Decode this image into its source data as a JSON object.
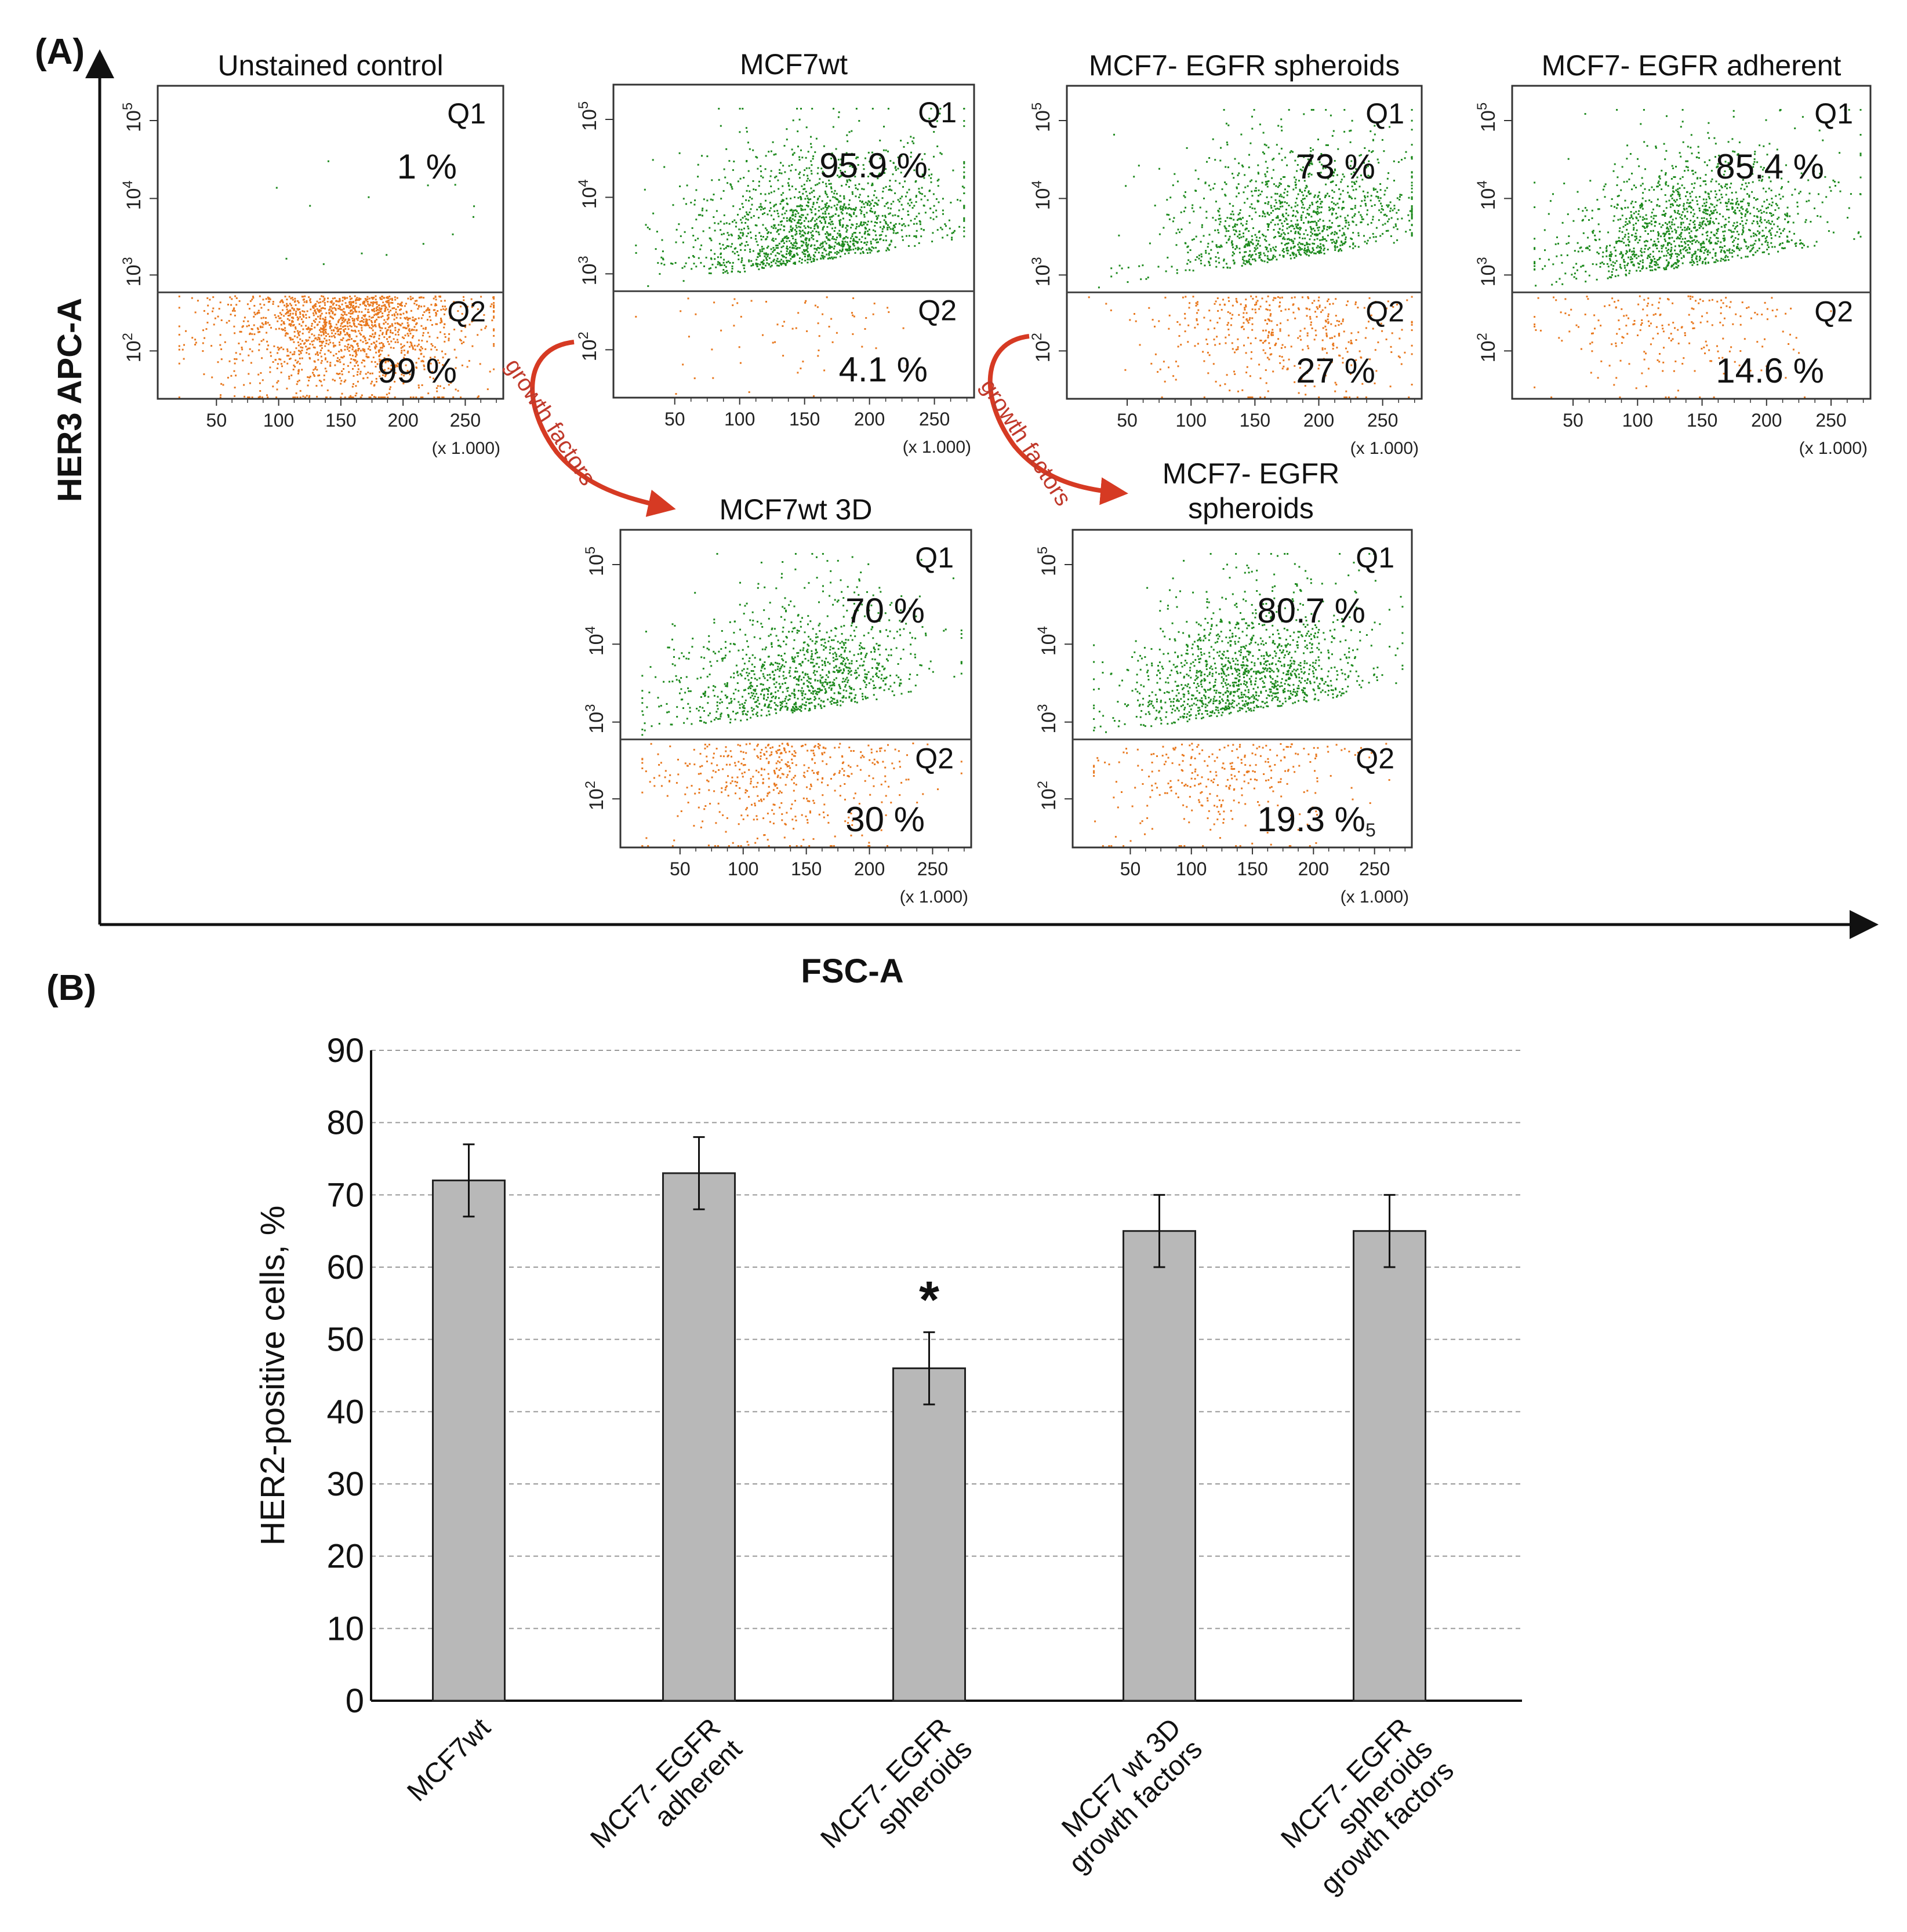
{
  "panel_a_label": "(A)",
  "panel_b_label": "(B)",
  "panel_a": {
    "y_axis_title": "HER3 APC-A",
    "x_axis_title": "FSC-A",
    "arrow_label": "growth factors",
    "stray_mark": "5",
    "plots": [
      {
        "title": "Unstained control",
        "q1_label": "Q1",
        "q1": "1 %",
        "q2_label": "Q2",
        "q2": "99 %",
        "q1_frac": 0.01,
        "x_mean": 0.55
      },
      {
        "title": "MCF7wt",
        "q1_label": "Q1",
        "q1": "95.9 %",
        "q2_label": "Q2",
        "q2": "4.1 %",
        "q1_frac": 0.959,
        "x_mean": 0.5
      },
      {
        "title": "MCF7- EGFR spheroids",
        "q1_label": "Q1",
        "q1": "73 %",
        "q2_label": "Q2",
        "q2": "27 %",
        "q1_frac": 0.73,
        "x_mean": 0.6
      },
      {
        "title": "MCF7- EGFR adherent",
        "q1_label": "Q1",
        "q1": "85.4 %",
        "q2_label": "Q2",
        "q2": "14.6 %",
        "q1_frac": 0.854,
        "x_mean": 0.45
      },
      {
        "title": "MCF7wt 3D",
        "q1_label": "Q1",
        "q1": "70 %",
        "q2_label": "Q2",
        "q2": "30 %",
        "q1_frac": 0.7,
        "x_mean": 0.45
      },
      {
        "title_line1": "MCF7- EGFR",
        "title_line2": "spheroids",
        "q1_label": "Q1",
        "q1": "80.7 %",
        "q2_label": "Q2",
        "q2": "19.3 %",
        "q1_frac": 0.807,
        "x_mean": 0.45
      }
    ],
    "x_ticks": [
      "50",
      "100",
      "150",
      "200",
      "250"
    ],
    "x_unit": "(x 1.000)",
    "y_ticks_base": "10",
    "y_ticks_exp": [
      "2",
      "3",
      "4",
      "5"
    ],
    "colors": {
      "q1": "#1e8a1e",
      "q2": "#e8781e",
      "arrow": "#d63a23"
    }
  },
  "chart_data": {
    "type": "bar",
    "categories": [
      "MCF7wt",
      "MCF7- EGFR adherent",
      "MCF7- EGFR spheroids",
      "MCF7 wt 3D growth factors",
      "MCF7- EGFR spheroids growth factors"
    ],
    "category_lines": [
      [
        "MCF7wt"
      ],
      [
        "MCF7- EGFR",
        "adherent"
      ],
      [
        "MCF7- EGFR",
        "spheroids"
      ],
      [
        "MCF7 wt 3D",
        "growth factors"
      ],
      [
        "MCF7- EGFR",
        "spheroids",
        "growth factors"
      ]
    ],
    "values": [
      72,
      73,
      46,
      65,
      65
    ],
    "errors": [
      5,
      5,
      5,
      5,
      5
    ],
    "significance": [
      "",
      "",
      "*",
      "",
      ""
    ],
    "ylabel": "HER2-positive cells, %",
    "xlabel": "",
    "ylim": [
      0,
      90
    ],
    "yticks": [
      0,
      10,
      20,
      30,
      40,
      50,
      60,
      70,
      80,
      90
    ],
    "grid": true,
    "bar_color": "#b8b8b8"
  }
}
